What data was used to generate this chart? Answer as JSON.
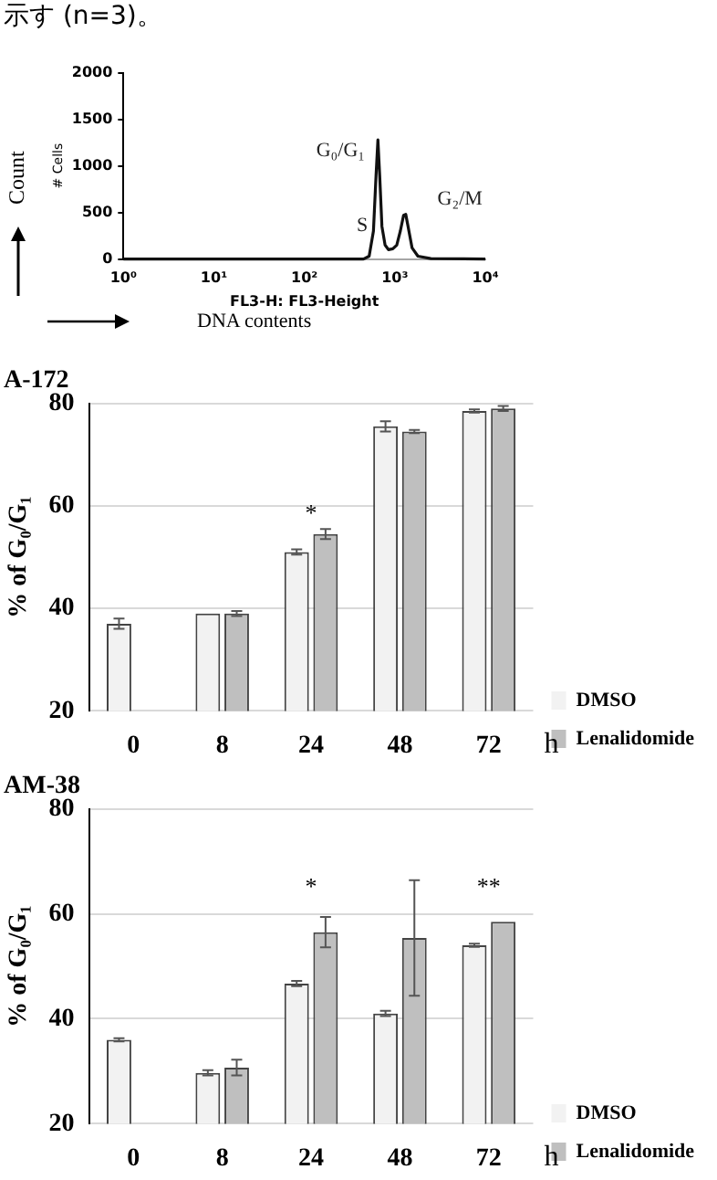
{
  "chart_data": [
    {
      "type": "line",
      "xlabel": "FL3-H: FL3-Height",
      "ylabel": "# Cells",
      "log": "x",
      "grid": false,
      "legend": false,
      "marker": "none",
      "xlim": [
        1,
        10000
      ],
      "xticks": [
        {
          "value": 1,
          "label": "10⁰"
        },
        {
          "value": 10,
          "label": "10¹"
        },
        {
          "value": 100,
          "label": "10²"
        },
        {
          "value": 1000,
          "label": "10³"
        },
        {
          "value": 10000,
          "label": "10⁴"
        }
      ],
      "ylim": [
        0,
        2000
      ],
      "yticks": [
        0,
        500,
        1000,
        1500,
        2000
      ],
      "x": [
        1,
        300,
        450,
        520,
        580,
        620,
        650,
        680,
        720,
        780,
        850,
        950,
        1050,
        1150,
        1250,
        1320,
        1400,
        1550,
        1800,
        2500,
        10000
      ],
      "series": [
        {
          "color": "#111111",
          "values": [
            0,
            0,
            0,
            30,
            300,
            900,
            1280,
            900,
            350,
            150,
            100,
            110,
            150,
            300,
            470,
            480,
            350,
            120,
            30,
            5,
            0
          ]
        }
      ],
      "annotations": [
        "示す (n=3)。",
        "Count",
        "DNA contents",
        "G₀/G₁",
        "S",
        "G₂/M"
      ]
    },
    {
      "type": "bar",
      "title": "A-172",
      "ylabel": "% of G₀/G₁",
      "xlabel": "h",
      "grid": "y",
      "legend": "right",
      "categories": [
        "0",
        "8",
        "24",
        "48",
        "72"
      ],
      "ylim": [
        20,
        80
      ],
      "yticks": [
        20,
        40,
        60,
        80
      ],
      "series": [
        {
          "name": "DMSO",
          "color": "#f2f2f2",
          "values": [
            37,
            39,
            51,
            75.5,
            78.5
          ],
          "errors": [
            1,
            null,
            0.5,
            1,
            0.3
          ]
        },
        {
          "name": "Lenalidomide",
          "color": "#bfbfbf",
          "values": [
            null,
            39,
            54.5,
            74.5,
            79
          ],
          "errors": [
            null,
            0.5,
            1,
            0.3,
            0.5
          ]
        }
      ],
      "annotations": [
        "*"
      ]
    },
    {
      "type": "bar",
      "title": "AM-38",
      "ylabel": "% of G₀/G₁",
      "xlabel": "h",
      "grid": "y",
      "legend": "right",
      "categories": [
        "0",
        "8",
        "24",
        "48",
        "72"
      ],
      "ylim": [
        20,
        80
      ],
      "yticks": [
        20,
        40,
        60,
        80
      ],
      "series": [
        {
          "name": "DMSO",
          "color": "#f2f2f2",
          "values": [
            36,
            29.7,
            46.7,
            41,
            54
          ],
          "errors": [
            0.3,
            0.5,
            0.5,
            0.5,
            0.3
          ]
        },
        {
          "name": "Lenalidomide",
          "color": "#bfbfbf",
          "values": [
            null,
            30.7,
            56.5,
            55.4,
            58.5
          ],
          "errors": [
            null,
            1.5,
            2.9,
            11,
            null
          ]
        }
      ],
      "annotations": [
        "*",
        "**"
      ]
    }
  ]
}
